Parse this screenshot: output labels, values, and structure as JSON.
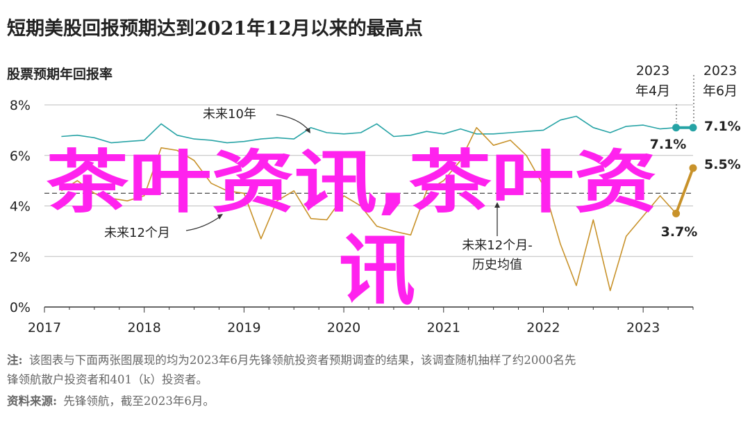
{
  "title": "短期美股回报预期达到2021年12月以来的最高点",
  "subtitle": "股票预期年回报率",
  "watermark": {
    "line1": "茶叶资讯,茶叶资",
    "line2": "讯"
  },
  "annotations": {
    "ten_year": "未来10年",
    "twelve_month": "未来12个月",
    "hist_avg_line1": "未来12个月-",
    "hist_avg_line2": "历史均值",
    "apr_year": "2023",
    "apr_month": "年4月",
    "jun_year": "2023",
    "jun_month": "年6月",
    "teal_end": "7.1%",
    "teal_apr": "7.1%",
    "orange_end": "5.5%",
    "orange_apr": "3.7%"
  },
  "footer": {
    "note_label": "注:",
    "note_text": "该图表与下面两张图展现的均为2023年6月先锋领航投资者预期调查的结果，该调查随机抽样了约2000名先",
    "note_text2": "锋领航散户投资者和401（k）投资者。",
    "source_label": "资料来源:",
    "source_text": "先锋领航，截至2023年6月。"
  },
  "colors": {
    "teal": "#26a3a5",
    "orange": "#c8922a",
    "grid": "#bdbdbd",
    "dash": "#555555",
    "watermark": "#ff22ee"
  },
  "chart_data": {
    "type": "line",
    "xlabel": "",
    "ylabel": "",
    "xlim": [
      2017,
      2023.5
    ],
    "ylim": [
      0,
      8
    ],
    "x_ticks": [
      "2017",
      "2018",
      "2019",
      "2020",
      "2021",
      "2022",
      "2023"
    ],
    "y_ticks": [
      "0%",
      "2%",
      "4%",
      "6%",
      "8%"
    ],
    "historical_average": 4.5,
    "series": [
      {
        "name": "未来10年",
        "color": "#26a3a5",
        "x": [
          2017.17,
          2017.33,
          2017.5,
          2017.67,
          2017.83,
          2018.0,
          2018.17,
          2018.33,
          2018.5,
          2018.67,
          2018.83,
          2019.0,
          2019.17,
          2019.33,
          2019.5,
          2019.67,
          2019.83,
          2020.0,
          2020.17,
          2020.33,
          2020.5,
          2020.67,
          2020.83,
          2021.0,
          2021.17,
          2021.33,
          2021.5,
          2021.67,
          2021.83,
          2022.0,
          2022.17,
          2022.33,
          2022.5,
          2022.67,
          2022.83,
          2023.0,
          2023.17,
          2023.33,
          2023.5
        ],
        "values": [
          6.75,
          6.8,
          6.7,
          6.5,
          6.55,
          6.6,
          7.25,
          6.8,
          6.65,
          6.6,
          6.5,
          6.55,
          6.65,
          6.7,
          6.65,
          7.1,
          6.9,
          6.85,
          6.9,
          7.25,
          6.75,
          6.8,
          6.95,
          6.85,
          7.05,
          6.85,
          6.85,
          6.9,
          6.95,
          7.0,
          7.4,
          7.55,
          7.1,
          6.9,
          7.15,
          7.2,
          7.05,
          7.1,
          7.1
        ]
      },
      {
        "name": "未来12个月",
        "color": "#c8922a",
        "x": [
          2017.17,
          2017.33,
          2017.5,
          2017.67,
          2017.83,
          2018.0,
          2018.17,
          2018.33,
          2018.5,
          2018.67,
          2018.83,
          2019.0,
          2019.17,
          2019.33,
          2019.5,
          2019.67,
          2019.83,
          2020.0,
          2020.17,
          2020.33,
          2020.5,
          2020.67,
          2020.83,
          2021.0,
          2021.17,
          2021.33,
          2021.5,
          2021.67,
          2021.83,
          2022.0,
          2022.17,
          2022.33,
          2022.5,
          2022.67,
          2022.83,
          2023.0,
          2023.17,
          2023.33,
          2023.5
        ],
        "values": [
          4.6,
          5.0,
          4.5,
          4.3,
          4.2,
          4.4,
          6.3,
          6.2,
          5.8,
          4.9,
          4.6,
          4.5,
          2.7,
          4.2,
          4.6,
          3.5,
          3.45,
          4.4,
          4.0,
          3.2,
          3.0,
          2.85,
          4.6,
          5.0,
          5.8,
          7.1,
          6.4,
          6.6,
          6.0,
          4.8,
          2.5,
          0.85,
          3.45,
          0.65,
          2.8,
          3.6,
          4.4,
          3.7,
          5.5
        ]
      }
    ]
  }
}
